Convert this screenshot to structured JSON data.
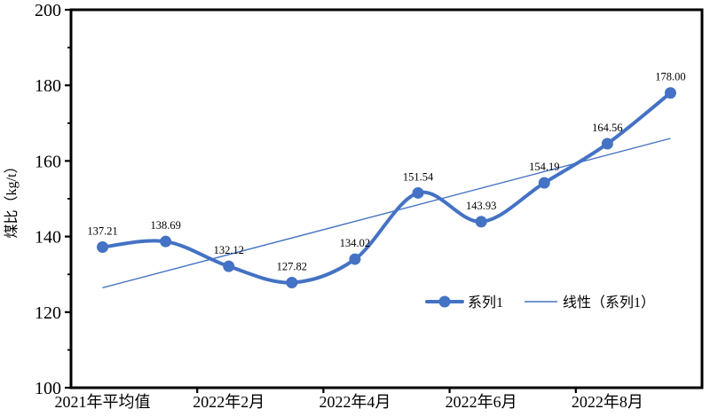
{
  "chart_data": {
    "type": "line",
    "title": "",
    "xlabel": "",
    "ylabel": "煤比（kg/t）",
    "ylim": [
      100,
      200
    ],
    "y_major_step": 20,
    "y_minor_step": 10,
    "y_tick_labels": [
      "100",
      "120",
      "140",
      "160",
      "180",
      "200"
    ],
    "x_tick_labels": [
      "2021年平均值",
      "2022年2月",
      "2022年4月",
      "2022年6月",
      "2022年8月"
    ],
    "x_label_interval": 2,
    "num_points": 10,
    "grid": "off",
    "plot_border_color": "#000000",
    "background": "#ffffff",
    "legend_position": "inside-bottom-right",
    "series": [
      {
        "name": "系列1",
        "style": "smooth-line-with-markers",
        "color": "#4472C4",
        "values": [
          137.21,
          138.69,
          132.12,
          127.82,
          134.02,
          151.54,
          143.93,
          154.19,
          164.56,
          178.0
        ],
        "data_labels": [
          "137.21",
          "138.69",
          "132.12",
          "127.82",
          "134.02",
          "151.54",
          "143.93",
          "154.19",
          "164.56",
          "178.00"
        ]
      },
      {
        "name": "线性（系列1）",
        "style": "linear-trendline",
        "of_series": "系列1",
        "color": "#4472C4"
      }
    ]
  }
}
